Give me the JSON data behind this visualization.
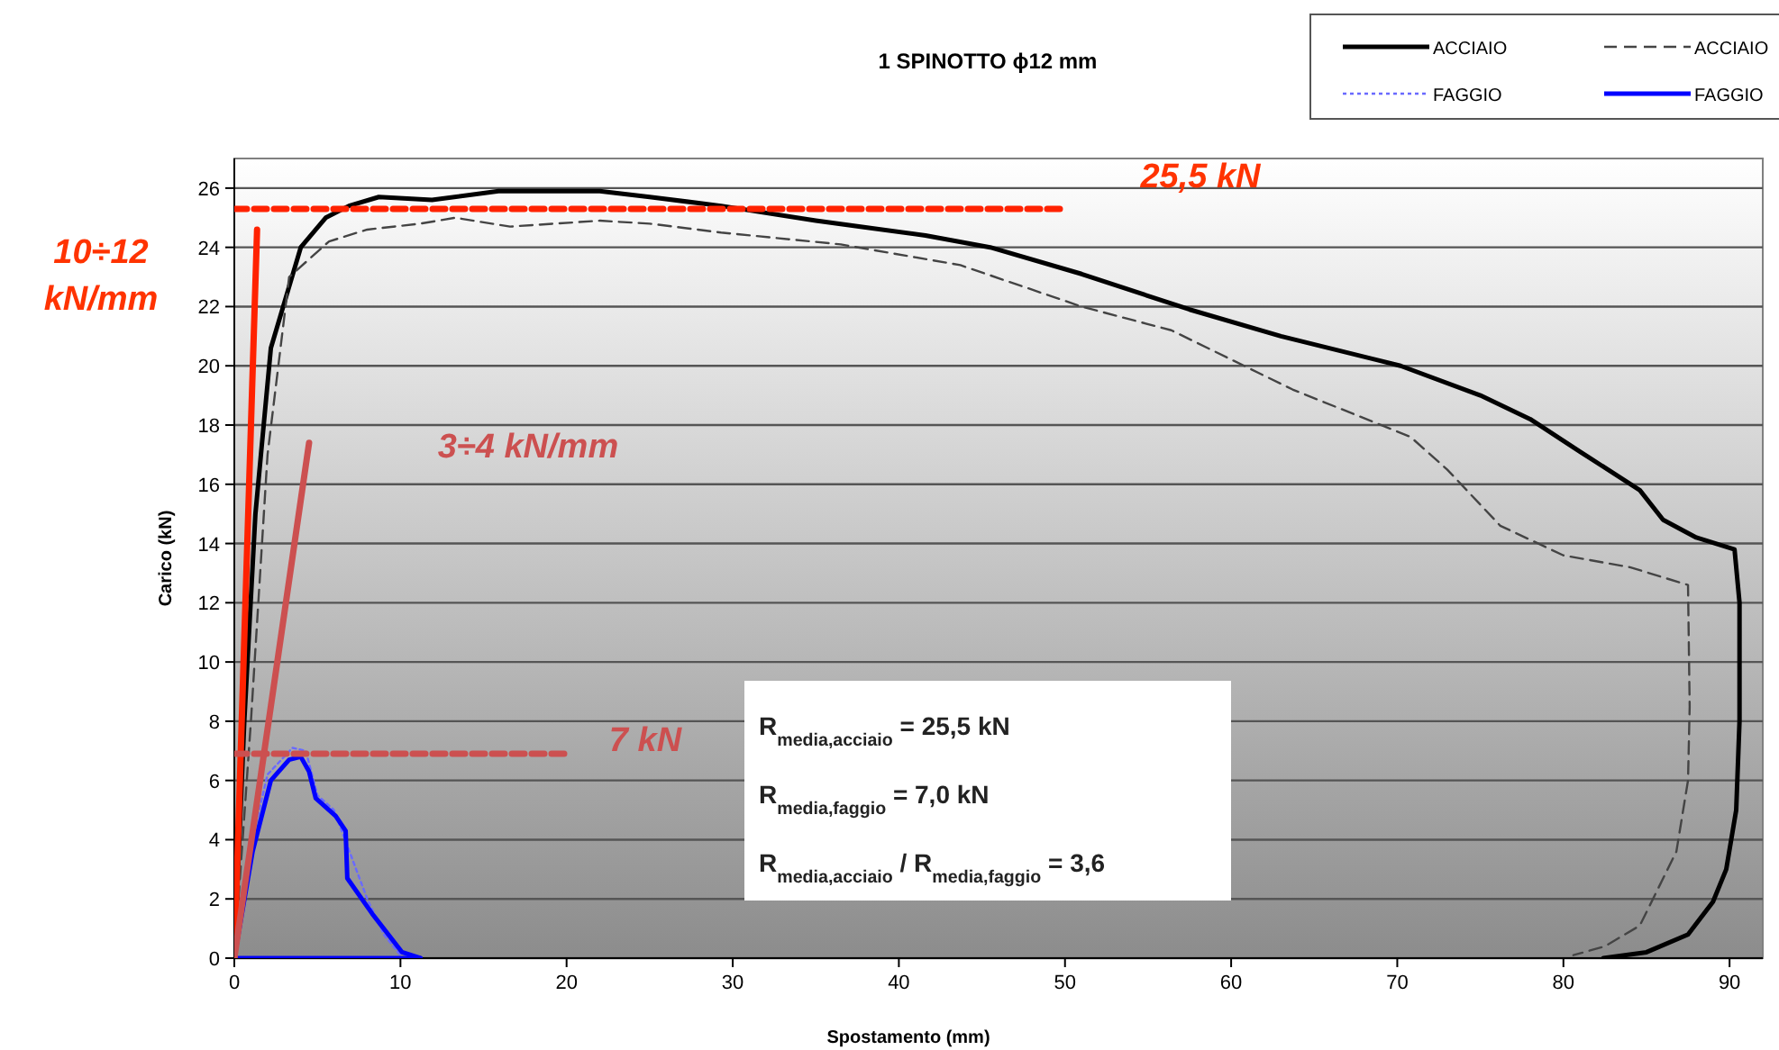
{
  "chart_data": {
    "type": "line",
    "title": "1 SPINOTTO ϕ12 mm",
    "xlabel": "Spostamento (mm)",
    "ylabel": "Carico (kN)",
    "xlim": [
      0,
      92
    ],
    "ylim": [
      0,
      27
    ],
    "xticks": [
      0,
      10,
      20,
      30,
      40,
      50,
      60,
      70,
      80,
      90
    ],
    "yticks": [
      0,
      2,
      4,
      6,
      8,
      10,
      12,
      14,
      16,
      18,
      20,
      22,
      24,
      26
    ],
    "grid": "y",
    "legend": "top right",
    "series": [
      {
        "name": "ACCIAIO",
        "color": "#000000",
        "line_style": "solid",
        "x": [
          0,
          0.6,
          1.27,
          2.2,
          4,
          5.5,
          6.9,
          8.7,
          11.9,
          15.9,
          22,
          25,
          29.3,
          35,
          41.6,
          45.5,
          51,
          57.5,
          63,
          70.2,
          75,
          78,
          81,
          84.6,
          86,
          88,
          90.3,
          90.6,
          90.6,
          90.4,
          89.8,
          89,
          87.5,
          85,
          82.4
        ],
        "values": [
          0,
          8,
          15,
          20.6,
          24,
          25,
          25.4,
          25.7,
          25.6,
          25.9,
          25.9,
          25.7,
          25.4,
          24.9,
          24.4,
          24,
          23.1,
          21.9,
          21,
          20,
          19,
          18.2,
          17.1,
          15.8,
          14.8,
          14.2,
          13.8,
          12,
          8,
          5,
          3,
          1.9,
          0.8,
          0.2,
          0
        ]
      },
      {
        "name": "ACCIAIO",
        "color": "#444444",
        "line_style": "dashed",
        "x": [
          0,
          1,
          2,
          3.3,
          5.7,
          8,
          11.2,
          13.3,
          16.6,
          22,
          25,
          29.3,
          36.5,
          43.7,
          51,
          56.4,
          63.7,
          70.8,
          73,
          76.2,
          80,
          84,
          87.5,
          87.6,
          87.5,
          86.8,
          84.6,
          82.5,
          80.6
        ],
        "values": [
          0,
          8,
          17,
          23,
          24.2,
          24.6,
          24.8,
          25,
          24.7,
          24.9,
          24.8,
          24.5,
          24.1,
          23.4,
          22,
          21.2,
          19.2,
          17.6,
          16.5,
          14.6,
          13.6,
          13.2,
          12.6,
          8.5,
          6,
          3.6,
          1.1,
          0.4,
          0.1
        ]
      },
      {
        "name": "FAGGIO",
        "color": "#6a6aff",
        "line_style": "dotted",
        "x": [
          0,
          1,
          2,
          3.5,
          4.3,
          5,
          6,
          7,
          8,
          9,
          10
        ],
        "values": [
          0,
          3.8,
          6.2,
          7.1,
          7,
          5.5,
          5,
          3.5,
          2,
          0.8,
          0.1
        ]
      },
      {
        "name": "FAGGIO",
        "color": "#0000ff",
        "line_style": "solid",
        "x": [
          0,
          1.1,
          2.2,
          3.3,
          4,
          4.5,
          4.9,
          6.1,
          6.7,
          6.8,
          8.3,
          10.1,
          11.2
        ],
        "values": [
          0,
          3.6,
          6,
          6.7,
          6.8,
          6.3,
          5.4,
          4.8,
          4.3,
          2.7,
          1.5,
          0.2,
          0
        ]
      },
      {
        "color": "#0000ff",
        "line_style": "solid",
        "x": [
          0,
          11.2
        ],
        "values": [
          0,
          0
        ]
      },
      {
        "color": "#ff2200",
        "line_style": "solid",
        "x": [
          0,
          1.37
        ],
        "values": [
          0,
          24.6
        ]
      },
      {
        "color": "#cc5050",
        "line_style": "solid",
        "x": [
          0,
          4.5
        ],
        "values": [
          0,
          17.4
        ]
      },
      {
        "color": "#ff2200",
        "line_style": "dashed",
        "x": [
          0,
          50
        ],
        "values": [
          25.3,
          25.3
        ]
      },
      {
        "color": "#cc5050",
        "line_style": "dashed",
        "x": [
          0,
          20
        ],
        "values": [
          6.9,
          6.9
        ]
      }
    ],
    "annotations": [
      "10÷12 kN/mm",
      "25,5 kN",
      "3÷4 kN/mm",
      "7 kN",
      "R$_{media,acciaio}$ = 25,5 kN",
      "R$_{media,faggio}$ = 7,0 kN",
      "R$_{media,acciaio}$ / R$_{media,faggio}$ = 3,6"
    ]
  }
}
